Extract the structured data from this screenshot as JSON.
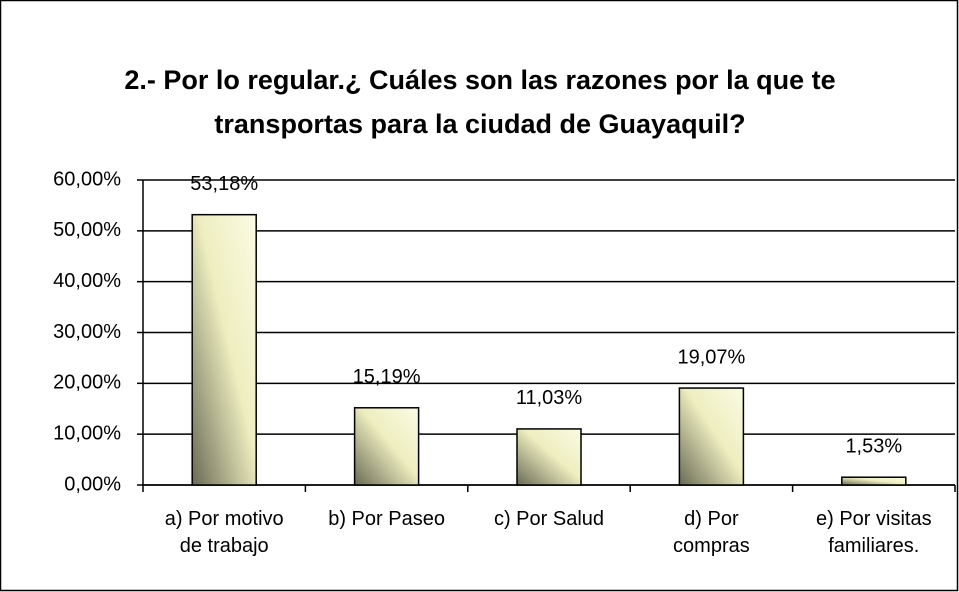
{
  "chart_data": {
    "type": "bar",
    "title": "2.- Por lo regular.¿ Cuáles son las razones por la que te transportas para la ciudad de Guayaquil?",
    "categories": [
      "a) Por motivo\nde trabajo",
      "b) Por Paseo",
      "c) Por Salud",
      "d) Por\ncompras",
      "e) Por visitas\nfamiliares."
    ],
    "values": [
      53.18,
      15.19,
      11.03,
      19.07,
      1.53
    ],
    "value_labels": [
      "53,18%",
      "15,19%",
      "11,03%",
      "19,07%",
      "1,53%"
    ],
    "color": "#f4f4c8",
    "ylim": [
      0,
      60
    ],
    "yticks": [
      {
        "value": 0,
        "label": "0,00%"
      },
      {
        "value": 10,
        "label": "10,00%"
      },
      {
        "value": 20,
        "label": "20,00%"
      },
      {
        "value": 30,
        "label": "30,00%"
      },
      {
        "value": 40,
        "label": "40,00%"
      },
      {
        "value": 50,
        "label": "50,00%"
      },
      {
        "value": 60,
        "label": "60,00%"
      }
    ],
    "grid": true
  }
}
